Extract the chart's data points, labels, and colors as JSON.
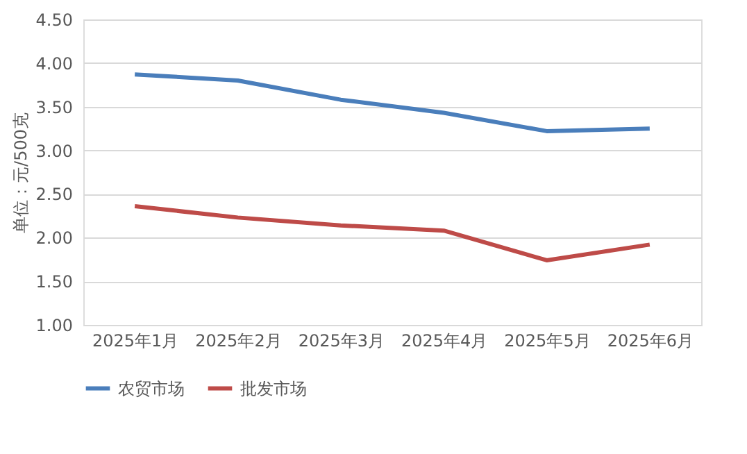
{
  "chart_data": {
    "type": "line",
    "ylabel": "单位：元/500克",
    "categories": [
      "2025年1月",
      "2025年2月",
      "2025年3月",
      "2025年4月",
      "2025年5月",
      "2025年6月"
    ],
    "series": [
      {
        "name": "农贸市场",
        "color": "#4a7ebb",
        "values": [
          3.87,
          3.8,
          3.58,
          3.43,
          3.22,
          3.25
        ]
      },
      {
        "name": "批发市场",
        "color": "#be4b48",
        "values": [
          2.36,
          2.23,
          2.14,
          2.08,
          1.74,
          1.92
        ]
      }
    ],
    "ylim": [
      1,
      4.5
    ],
    "yticks": [
      {
        "value": 1,
        "label": "1.00"
      },
      {
        "value": 1.5,
        "label": "1.50"
      },
      {
        "value": 2,
        "label": "2.00"
      },
      {
        "value": 2.5,
        "label": "2.50"
      },
      {
        "value": 3,
        "label": "3.00"
      },
      {
        "value": 3.5,
        "label": "3.50"
      },
      {
        "value": 4,
        "label": "4.00"
      },
      {
        "value": 4.5,
        "label": "4.50"
      }
    ],
    "grid": "y",
    "legend": "bottom",
    "marker": "none",
    "line_style": "solid"
  }
}
